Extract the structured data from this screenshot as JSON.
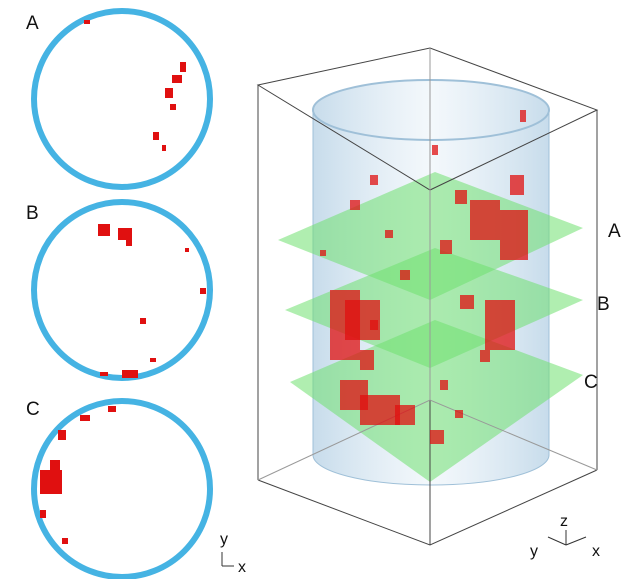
{
  "panels": [
    {
      "label": "A"
    },
    {
      "label": "B"
    },
    {
      "label": "C"
    }
  ],
  "slices": [
    {
      "label": "A"
    },
    {
      "label": "B"
    },
    {
      "label": "C"
    }
  ],
  "axes2d": {
    "y": "y",
    "x": "x"
  },
  "axes3d": {
    "z": "z",
    "y": "y",
    "x": "x"
  }
}
